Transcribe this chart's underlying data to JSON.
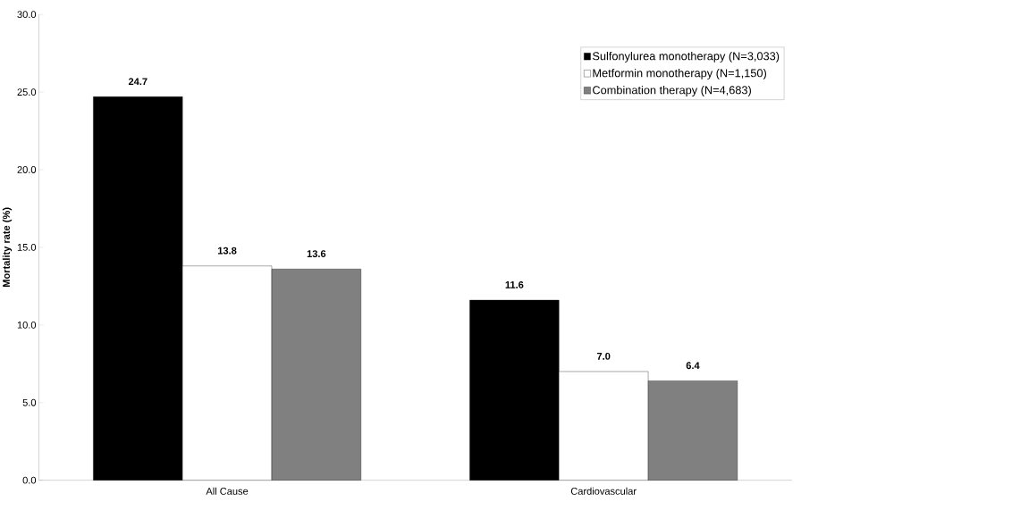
{
  "chart_data": {
    "type": "bar",
    "ylabel": "Mortality rate (%)",
    "categories": [
      "All Cause",
      "Cardiovascular"
    ],
    "series": [
      {
        "name": "Sulfonylurea monotherapy (N=3,033)",
        "color": "#000000",
        "values": [
          24.7,
          11.6
        ],
        "value_labels": [
          "24.7",
          "11.6"
        ]
      },
      {
        "name": "Metformin monotherapy (N=1,150)",
        "color": "#ffffff",
        "values": [
          13.8,
          7.0
        ],
        "value_labels": [
          "13.8",
          "7.0"
        ]
      },
      {
        "name": "Combination therapy (N=4,683)",
        "color": "#808080",
        "values": [
          13.6,
          6.4
        ],
        "value_labels": [
          "13.6",
          "6.4"
        ]
      }
    ],
    "ylim": [
      0,
      30
    ],
    "yticks": [
      {
        "value": 0,
        "label": "0.0"
      },
      {
        "value": 5,
        "label": "5.0"
      },
      {
        "value": 10,
        "label": "10.0"
      },
      {
        "value": 15,
        "label": "15.0"
      },
      {
        "value": 20,
        "label": "20.0"
      },
      {
        "value": 25,
        "label": "25.0"
      },
      {
        "value": 30,
        "label": "30.0"
      }
    ],
    "legend": "top right",
    "grid": false
  }
}
